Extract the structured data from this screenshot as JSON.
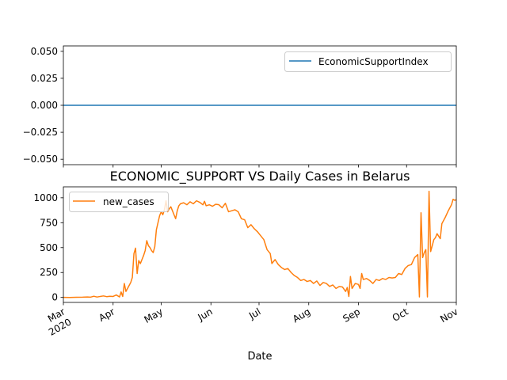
{
  "chart_data": [
    {
      "type": "line",
      "title": "",
      "xlabel": "",
      "ylabel": "",
      "ylim": [
        -0.055,
        0.055
      ],
      "yticks": [
        {
          "value": 0.05,
          "label": "0.050"
        },
        {
          "value": 0.025,
          "label": "0.025"
        },
        {
          "value": 0.0,
          "label": "0.000"
        },
        {
          "value": -0.025,
          "label": "−0.025"
        },
        {
          "value": -0.05,
          "label": "−0.050"
        }
      ],
      "grid": false,
      "legend_position": "upper right",
      "x_ticks_labelled": false,
      "series": [
        {
          "name": "EconomicSupportIndex",
          "color": "#1f77b4",
          "x": [
            "2020-03-01",
            "2020-11-01"
          ],
          "y": [
            0,
            0
          ]
        }
      ]
    },
    {
      "type": "line",
      "title": "ECONOMIC_SUPPORT VS Daily Cases in Belarus",
      "xlabel": "Date",
      "ylabel": "",
      "ylim": [
        -50,
        1110
      ],
      "yticks": [
        {
          "value": 0,
          "label": "0"
        },
        {
          "value": 250,
          "label": "250"
        },
        {
          "value": 500,
          "label": "500"
        },
        {
          "value": 750,
          "label": "750"
        },
        {
          "value": 1000,
          "label": "1000"
        }
      ],
      "xlim": [
        "2020-03-01",
        "2020-11-01"
      ],
      "xticks": [
        {
          "date": "2020-03-01",
          "label": "Mar",
          "sublabel": "2020"
        },
        {
          "date": "2020-04-01",
          "label": "Apr"
        },
        {
          "date": "2020-05-01",
          "label": "May"
        },
        {
          "date": "2020-06-01",
          "label": "Jun"
        },
        {
          "date": "2020-07-01",
          "label": "Jul"
        },
        {
          "date": "2020-08-01",
          "label": "Aug"
        },
        {
          "date": "2020-09-01",
          "label": "Sep"
        },
        {
          "date": "2020-10-01",
          "label": "Oct"
        },
        {
          "date": "2020-11-01",
          "label": "Nov"
        }
      ],
      "grid": false,
      "legend_position": "upper left",
      "series": [
        {
          "name": "new_cases",
          "color": "#ff7f0e",
          "points": [
            [
              "2020-03-01",
              1
            ],
            [
              "2020-03-05",
              0
            ],
            [
              "2020-03-09",
              2
            ],
            [
              "2020-03-13",
              3
            ],
            [
              "2020-03-16",
              5
            ],
            [
              "2020-03-18",
              3
            ],
            [
              "2020-03-20",
              12
            ],
            [
              "2020-03-22",
              4
            ],
            [
              "2020-03-24",
              10
            ],
            [
              "2020-03-26",
              15
            ],
            [
              "2020-03-28",
              8
            ],
            [
              "2020-03-30",
              12
            ],
            [
              "2020-04-01",
              10
            ],
            [
              "2020-04-03",
              25
            ],
            [
              "2020-04-05",
              5
            ],
            [
              "2020-04-06",
              55
            ],
            [
              "2020-04-07",
              10
            ],
            [
              "2020-04-08",
              140
            ],
            [
              "2020-04-09",
              60
            ],
            [
              "2020-04-10",
              90
            ],
            [
              "2020-04-11",
              120
            ],
            [
              "2020-04-12",
              150
            ],
            [
              "2020-04-13",
              200
            ],
            [
              "2020-04-14",
              440
            ],
            [
              "2020-04-15",
              495
            ],
            [
              "2020-04-16",
              240
            ],
            [
              "2020-04-17",
              370
            ],
            [
              "2020-04-18",
              340
            ],
            [
              "2020-04-19",
              380
            ],
            [
              "2020-04-20",
              420
            ],
            [
              "2020-04-21",
              470
            ],
            [
              "2020-04-22",
              570
            ],
            [
              "2020-04-23",
              520
            ],
            [
              "2020-04-24",
              500
            ],
            [
              "2020-04-25",
              470
            ],
            [
              "2020-04-26",
              450
            ],
            [
              "2020-04-27",
              510
            ],
            [
              "2020-04-28",
              680
            ],
            [
              "2020-04-29",
              750
            ],
            [
              "2020-04-30",
              820
            ],
            [
              "2020-05-01",
              860
            ],
            [
              "2020-05-02",
              830
            ],
            [
              "2020-05-03",
              880
            ],
            [
              "2020-05-04",
              970
            ],
            [
              "2020-05-05",
              860
            ],
            [
              "2020-05-06",
              890
            ],
            [
              "2020-05-07",
              910
            ],
            [
              "2020-05-08",
              870
            ],
            [
              "2020-05-09",
              830
            ],
            [
              "2020-05-10",
              790
            ],
            [
              "2020-05-11",
              870
            ],
            [
              "2020-05-12",
              920
            ],
            [
              "2020-05-13",
              940
            ],
            [
              "2020-05-15",
              950
            ],
            [
              "2020-05-17",
              930
            ],
            [
              "2020-05-19",
              960
            ],
            [
              "2020-05-21",
              940
            ],
            [
              "2020-05-23",
              970
            ],
            [
              "2020-05-25",
              955
            ],
            [
              "2020-05-27",
              930
            ],
            [
              "2020-05-28",
              965
            ],
            [
              "2020-05-29",
              920
            ],
            [
              "2020-05-31",
              930
            ],
            [
              "2020-06-02",
              915
            ],
            [
              "2020-06-04",
              935
            ],
            [
              "2020-06-06",
              930
            ],
            [
              "2020-06-08",
              900
            ],
            [
              "2020-06-10",
              945
            ],
            [
              "2020-06-12",
              860
            ],
            [
              "2020-06-14",
              870
            ],
            [
              "2020-06-16",
              880
            ],
            [
              "2020-06-18",
              860
            ],
            [
              "2020-06-20",
              790
            ],
            [
              "2020-06-22",
              780
            ],
            [
              "2020-06-24",
              700
            ],
            [
              "2020-06-26",
              730
            ],
            [
              "2020-06-28",
              690
            ],
            [
              "2020-06-30",
              660
            ],
            [
              "2020-07-02",
              620
            ],
            [
              "2020-07-04",
              580
            ],
            [
              "2020-07-06",
              480
            ],
            [
              "2020-07-08",
              440
            ],
            [
              "2020-07-09",
              340
            ],
            [
              "2020-07-11",
              380
            ],
            [
              "2020-07-13",
              330
            ],
            [
              "2020-07-15",
              300
            ],
            [
              "2020-07-17",
              280
            ],
            [
              "2020-07-19",
              290
            ],
            [
              "2020-07-21",
              250
            ],
            [
              "2020-07-23",
              220
            ],
            [
              "2020-07-25",
              200
            ],
            [
              "2020-07-27",
              170
            ],
            [
              "2020-07-29",
              180
            ],
            [
              "2020-07-31",
              160
            ],
            [
              "2020-08-02",
              170
            ],
            [
              "2020-08-04",
              140
            ],
            [
              "2020-08-06",
              165
            ],
            [
              "2020-08-08",
              120
            ],
            [
              "2020-08-10",
              150
            ],
            [
              "2020-08-12",
              140
            ],
            [
              "2020-08-14",
              110
            ],
            [
              "2020-08-16",
              125
            ],
            [
              "2020-08-18",
              90
            ],
            [
              "2020-08-20",
              110
            ],
            [
              "2020-08-22",
              105
            ],
            [
              "2020-08-24",
              60
            ],
            [
              "2020-08-25",
              100
            ],
            [
              "2020-08-26",
              10
            ],
            [
              "2020-08-27",
              210
            ],
            [
              "2020-08-28",
              90
            ],
            [
              "2020-08-30",
              140
            ],
            [
              "2020-09-01",
              130
            ],
            [
              "2020-09-02",
              90
            ],
            [
              "2020-09-03",
              240
            ],
            [
              "2020-09-04",
              180
            ],
            [
              "2020-09-06",
              190
            ],
            [
              "2020-09-08",
              170
            ],
            [
              "2020-09-10",
              140
            ],
            [
              "2020-09-12",
              180
            ],
            [
              "2020-09-14",
              170
            ],
            [
              "2020-09-16",
              190
            ],
            [
              "2020-09-18",
              180
            ],
            [
              "2020-09-20",
              200
            ],
            [
              "2020-09-22",
              195
            ],
            [
              "2020-09-24",
              200
            ],
            [
              "2020-09-26",
              240
            ],
            [
              "2020-09-28",
              230
            ],
            [
              "2020-09-30",
              290
            ],
            [
              "2020-10-02",
              320
            ],
            [
              "2020-10-04",
              330
            ],
            [
              "2020-10-06",
              400
            ],
            [
              "2020-10-08",
              430
            ],
            [
              "2020-10-09",
              5
            ],
            [
              "2020-10-10",
              850
            ],
            [
              "2020-10-11",
              400
            ],
            [
              "2020-10-12",
              450
            ],
            [
              "2020-10-13",
              480
            ],
            [
              "2020-10-14",
              5
            ],
            [
              "2020-10-15",
              1065
            ],
            [
              "2020-10-16",
              460
            ],
            [
              "2020-10-17",
              520
            ],
            [
              "2020-10-18",
              580
            ],
            [
              "2020-10-19",
              600
            ],
            [
              "2020-10-20",
              640
            ],
            [
              "2020-10-22",
              590
            ],
            [
              "2020-10-23",
              740
            ],
            [
              "2020-10-25",
              800
            ],
            [
              "2020-10-27",
              870
            ],
            [
              "2020-10-29",
              930
            ],
            [
              "2020-10-30",
              985
            ],
            [
              "2020-10-31",
              975
            ],
            [
              "2020-11-01",
              980
            ]
          ]
        }
      ]
    }
  ]
}
